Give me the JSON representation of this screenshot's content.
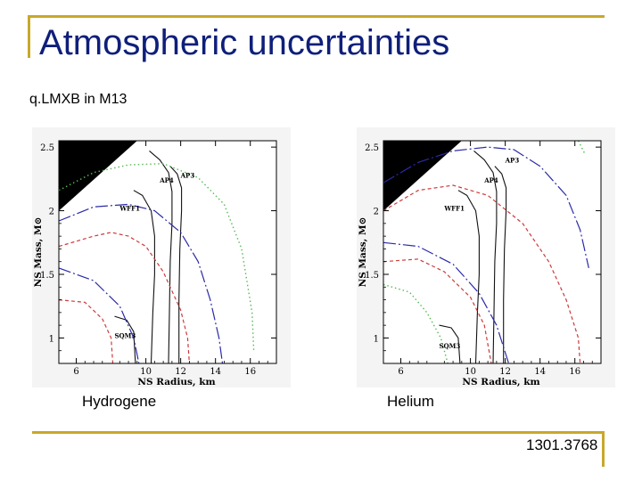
{
  "slide": {
    "title": "Atmospheric uncertainties",
    "subtitle": "q.LMXB in M13",
    "reference": "1301.3768",
    "accent_color": "#c8a82a",
    "title_color": "#0e1f7a"
  },
  "chart_data": [
    {
      "type": "line",
      "caption": "Hydrogene",
      "xlabel": "NS Radius, km",
      "ylabel": "NS Mass, M⊙",
      "xlim": [
        5,
        17.5
      ],
      "ylim": [
        0.8,
        2.55
      ],
      "xticks": [
        6,
        10,
        12,
        14,
        16
      ],
      "xtick_labels": [
        "6",
        "10",
        "12",
        "14",
        "16"
      ],
      "yticks": [
        1,
        1.5,
        2,
        2.5
      ],
      "ytick_labels": [
        "1",
        "1.5",
        "2",
        "2.5"
      ],
      "eos_labels": [
        {
          "text": "AP3",
          "x": 12.0,
          "y": 2.26
        },
        {
          "text": "AP4",
          "x": 10.8,
          "y": 2.22
        },
        {
          "text": "WFF1",
          "x": 8.5,
          "y": 2.0
        },
        {
          "text": "SQM3",
          "x": 8.2,
          "y": 1.0
        }
      ],
      "series": [
        {
          "style": "black",
          "values": [
            [
              11.3,
              0.8
            ],
            [
              11.35,
              1.2
            ],
            [
              11.4,
              1.6
            ],
            [
              11.5,
              1.9
            ],
            [
              11.5,
              2.15
            ],
            [
              11.3,
              2.3
            ],
            [
              10.8,
              2.4
            ],
            [
              10.2,
              2.47
            ]
          ]
        },
        {
          "style": "black",
          "values": [
            [
              11.9,
              0.8
            ],
            [
              11.9,
              1.3
            ],
            [
              11.95,
              1.7
            ],
            [
              12.05,
              2.0
            ],
            [
              12.05,
              2.18
            ],
            [
              11.8,
              2.29
            ],
            [
              11.4,
              2.35
            ]
          ]
        },
        {
          "style": "black",
          "values": [
            [
              10.3,
              0.8
            ],
            [
              10.4,
              1.2
            ],
            [
              10.5,
              1.5
            ],
            [
              10.5,
              1.8
            ],
            [
              10.3,
              2.0
            ],
            [
              9.8,
              2.12
            ],
            [
              9.3,
              2.16
            ]
          ]
        },
        {
          "style": "black",
          "values": [
            [
              9.4,
              0.8
            ],
            [
              9.3,
              1.05
            ],
            [
              8.9,
              1.14
            ],
            [
              8.2,
              1.17
            ]
          ]
        },
        {
          "style": "blue",
          "values": [
            [
              5.0,
              1.92
            ],
            [
              7.0,
              2.03
            ],
            [
              9.0,
              2.05
            ],
            [
              10.5,
              2.0
            ],
            [
              12.0,
              1.83
            ],
            [
              13.0,
              1.6
            ],
            [
              13.7,
              1.3
            ],
            [
              14.2,
              1.0
            ],
            [
              14.4,
              0.8
            ]
          ]
        },
        {
          "style": "green",
          "values": [
            [
              5.0,
              2.16
            ],
            [
              7.0,
              2.3
            ],
            [
              9.0,
              2.36
            ],
            [
              11.0,
              2.37
            ],
            [
              13.0,
              2.26
            ],
            [
              14.5,
              2.05
            ],
            [
              15.5,
              1.7
            ],
            [
              16.1,
              1.2
            ],
            [
              16.2,
              0.9
            ]
          ]
        },
        {
          "style": "red",
          "values": [
            [
              5.0,
              1.72
            ],
            [
              7.0,
              1.8
            ],
            [
              8.0,
              1.83
            ],
            [
              9.0,
              1.8
            ],
            [
              10.0,
              1.72
            ],
            [
              11.0,
              1.52
            ],
            [
              12.0,
              1.22
            ],
            [
              12.4,
              1.0
            ],
            [
              12.5,
              0.8
            ]
          ]
        },
        {
          "style": "red",
          "values": [
            [
              5.0,
              1.3
            ],
            [
              6.5,
              1.28
            ],
            [
              7.5,
              1.15
            ],
            [
              8.0,
              1.0
            ],
            [
              8.1,
              0.8
            ]
          ]
        },
        {
          "style": "blue",
          "values": [
            [
              5.0,
              1.55
            ],
            [
              7.0,
              1.45
            ],
            [
              8.5,
              1.25
            ],
            [
              9.3,
              1.0
            ],
            [
              9.6,
              0.8
            ]
          ]
        }
      ]
    },
    {
      "type": "line",
      "caption": "Helium",
      "xlabel": "NS Radius, km",
      "ylabel": "NS Mass, M⊙",
      "xlim": [
        5,
        17.5
      ],
      "ylim": [
        0.8,
        2.55
      ],
      "xticks": [
        6,
        10,
        12,
        14,
        16
      ],
      "xtick_labels": [
        "6",
        "10",
        "12",
        "14",
        "16"
      ],
      "yticks": [
        1,
        1.5,
        2,
        2.5
      ],
      "ytick_labels": [
        "1",
        "1.5",
        "2",
        "2.5"
      ],
      "eos_labels": [
        {
          "text": "AP3",
          "x": 12.0,
          "y": 2.38
        },
        {
          "text": "AP4",
          "x": 10.8,
          "y": 2.22
        },
        {
          "text": "WFF1",
          "x": 8.5,
          "y": 2.0
        },
        {
          "text": "SQM3",
          "x": 8.2,
          "y": 0.92
        }
      ],
      "series": [
        {
          "style": "black",
          "values": [
            [
              11.3,
              0.8
            ],
            [
              11.35,
              1.2
            ],
            [
              11.4,
              1.6
            ],
            [
              11.5,
              1.9
            ],
            [
              11.5,
              2.15
            ],
            [
              11.3,
              2.3
            ],
            [
              10.8,
              2.4
            ],
            [
              10.2,
              2.47
            ]
          ]
        },
        {
          "style": "black",
          "values": [
            [
              11.9,
              0.8
            ],
            [
              11.9,
              1.3
            ],
            [
              11.95,
              1.7
            ],
            [
              12.05,
              2.0
            ],
            [
              12.05,
              2.18
            ],
            [
              11.8,
              2.29
            ],
            [
              11.4,
              2.35
            ]
          ]
        },
        {
          "style": "black",
          "values": [
            [
              10.3,
              0.8
            ],
            [
              10.4,
              1.2
            ],
            [
              10.5,
              1.5
            ],
            [
              10.5,
              1.8
            ],
            [
              10.3,
              2.0
            ],
            [
              9.8,
              2.12
            ],
            [
              9.3,
              2.16
            ]
          ]
        },
        {
          "style": "black",
          "values": [
            [
              9.4,
              0.8
            ],
            [
              9.3,
              1.0
            ],
            [
              8.9,
              1.08
            ],
            [
              8.2,
              1.1
            ]
          ]
        },
        {
          "style": "blue",
          "values": [
            [
              5.0,
              2.22
            ],
            [
              7.0,
              2.38
            ],
            [
              9.0,
              2.47
            ],
            [
              11.0,
              2.5
            ],
            [
              12.5,
              2.48
            ],
            [
              14.0,
              2.35
            ],
            [
              15.5,
              2.12
            ],
            [
              16.3,
              1.85
            ],
            [
              16.8,
              1.55
            ]
          ]
        },
        {
          "style": "green",
          "values": [
            [
              16.2,
              2.55
            ],
            [
              16.6,
              2.44
            ]
          ]
        },
        {
          "style": "red",
          "values": [
            [
              5.0,
              2.0
            ],
            [
              7.0,
              2.16
            ],
            [
              9.0,
              2.2
            ],
            [
              11.0,
              2.12
            ],
            [
              13.0,
              1.9
            ],
            [
              14.5,
              1.6
            ],
            [
              15.5,
              1.3
            ],
            [
              16.2,
              1.0
            ],
            [
              16.3,
              0.8
            ]
          ]
        },
        {
          "style": "blue",
          "values": [
            [
              5.0,
              1.75
            ],
            [
              7.0,
              1.72
            ],
            [
              9.0,
              1.58
            ],
            [
              10.5,
              1.35
            ],
            [
              11.5,
              1.1
            ],
            [
              12.2,
              0.8
            ]
          ]
        },
        {
          "style": "red",
          "values": [
            [
              5.0,
              1.6
            ],
            [
              7.0,
              1.62
            ],
            [
              8.5,
              1.52
            ],
            [
              10.0,
              1.32
            ],
            [
              10.8,
              1.1
            ],
            [
              11.2,
              0.8
            ]
          ]
        },
        {
          "style": "green",
          "values": [
            [
              5.0,
              1.42
            ],
            [
              6.5,
              1.36
            ],
            [
              7.5,
              1.2
            ],
            [
              8.3,
              1.0
            ],
            [
              8.7,
              0.8
            ]
          ]
        }
      ]
    }
  ]
}
